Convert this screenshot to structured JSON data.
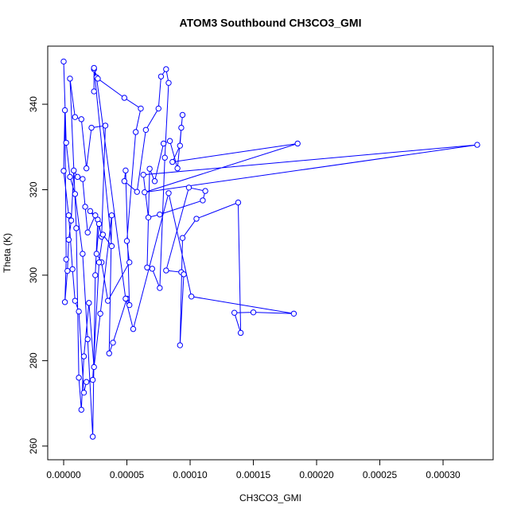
{
  "chart_data": {
    "type": "line",
    "title": "ATOM3 Southbound CH3CO3_GMI",
    "xlabel": "CH3CO3_GMI",
    "ylabel": "Theta (K)",
    "color": "#0000ff",
    "markers": true,
    "x": [
      0.0,
      2e-06,
      5e-06,
      9e-06,
      1.5e-05,
      1.9e-05,
      2.3e-05,
      2.5e-05,
      2.7e-05,
      3e-05,
      3.3e-05,
      2.2e-05,
      1.8e-05,
      1.4e-05,
      9e-06,
      5e-06,
      1e-05,
      1.2e-05,
      1.4e-05,
      1.6e-05,
      2e-05,
      2.4e-05,
      2.9e-05,
      3.8e-05,
      3.6e-05,
      3.9e-05,
      5e-05,
      5.2e-05,
      4.9e-05,
      4.8e-05,
      5.8e-05,
      6.5e-05,
      7.5e-05,
      7.7e-05,
      8.1e-05,
      8.3e-05,
      8e-05,
      7.6e-05,
      7e-05,
      6.6e-05,
      6.8e-05,
      7.2e-05,
      7.9e-05,
      8.4e-05,
      9e-05,
      9.4e-05,
      9.3e-05,
      9.2e-05,
      8.6e-05,
      0.000185,
      6.4e-05,
      0.000327,
      6.3e-05,
      6.7e-05,
      7.6e-05,
      0.00011,
      0.000112,
      9.9e-05,
      8.1e-05,
      9.3e-05,
      9.5e-05,
      9.2e-05,
      9.4e-05,
      0.000105,
      0.000138,
      0.00014,
      0.000135,
      0.00015,
      0.000182,
      0.000101,
      8.3e-05,
      5.5e-05,
      4.9e-05,
      2.6e-05,
      2.4e-05,
      2.7e-05,
      4.8e-05,
      6.1e-05,
      5.7e-05,
      5e-05,
      5.2e-05,
      3.5e-05,
      3e-05,
      2.6e-05,
      2.8e-05,
      2.1e-05,
      2.5e-05,
      1.9e-05,
      1.7e-05,
      1.5e-05,
      1.1e-05,
      8e-06,
      6e-06,
      4e-06,
      3e-06,
      1e-06,
      2e-06,
      1e-06,
      0.0,
      4e-06,
      7e-06,
      9e-06,
      1.2e-05,
      1.6e-05,
      1.8e-05,
      2.3e-05,
      2.8e-05,
      3.1e-05,
      3.8e-05,
      2.4e-05,
      2.4e-05
    ],
    "values": [
      350,
      331,
      323,
      319,
      305,
      285,
      262.2,
      300,
      313,
      309,
      335,
      334.5,
      325,
      336.5,
      337,
      346,
      311,
      276,
      268.5,
      281,
      293.5,
      278.5,
      291,
      314,
      281.7,
      284.2,
      294.5,
      293,
      324.5,
      322,
      319.5,
      334,
      339,
      346.5,
      348.2,
      345,
      327.5,
      297,
      301.5,
      301.8,
      324.9,
      322,
      330.8,
      331.4,
      325,
      337.5,
      334.5,
      330.3,
      326.5,
      330.8,
      319.4,
      330.5,
      323.5,
      313.5,
      314.2,
      317.5,
      319.7,
      320.5,
      301.1,
      300.7,
      300.2,
      283.6,
      308.7,
      313.2,
      317,
      286.5,
      291.2,
      291.3,
      291,
      295,
      319.2,
      287.4,
      294.5,
      346.3,
      348.2,
      346,
      341.5,
      339,
      333.5,
      308,
      303,
      294,
      303,
      305,
      312,
      315,
      314,
      310,
      316,
      322.5,
      323,
      324.5,
      312.8,
      308.3,
      301,
      293.7,
      303.7,
      338.6,
      324.4,
      314,
      301.4,
      294,
      291.5,
      272.5,
      275,
      275.5,
      303,
      309.5,
      306.8,
      348.5,
      343
    ],
    "xlim": [
      -1.26e-05,
      0.0003396
    ],
    "ylim": [
      256.8,
      353.6
    ],
    "xticks": [
      {
        "value": 0,
        "label": "0.00000"
      },
      {
        "value": 5e-05,
        "label": "0.00005"
      },
      {
        "value": 0.0001,
        "label": "0.00010"
      },
      {
        "value": 0.00015,
        "label": "0.00015"
      },
      {
        "value": 0.0002,
        "label": "0.00020"
      },
      {
        "value": 0.00025,
        "label": "0.00025"
      },
      {
        "value": 0.0003,
        "label": "0.00030"
      }
    ],
    "yticks": [
      260,
      280,
      300,
      320,
      340
    ]
  }
}
